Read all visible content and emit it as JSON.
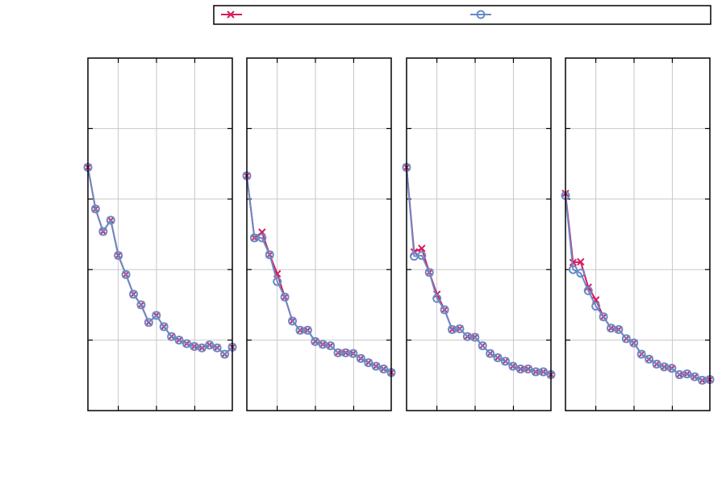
{
  "colors": {
    "series_a": "#d81b60",
    "series_b": "#6a8ac4",
    "grid": "#c8c8c8",
    "axis": "#000000",
    "background": "#ffffff"
  },
  "legend": {
    "placement": "top",
    "entries": [
      {
        "marker": "x-marker-icon",
        "color": "#d81b60",
        "label": ""
      },
      {
        "marker": "circle-marker-icon",
        "color": "#6a8ac4",
        "label": ""
      }
    ]
  },
  "chart_data": [
    {
      "type": "line",
      "grid": true,
      "xlim": [
        0,
        19
      ],
      "ylim": [
        0,
        5
      ],
      "x": [
        0,
        1,
        2,
        3,
        4,
        5,
        6,
        7,
        8,
        9,
        10,
        11,
        12,
        13,
        14,
        15,
        16,
        17,
        18,
        19
      ],
      "series": [
        {
          "marker": "x",
          "color": "#d81b60",
          "values": [
            3.45,
            2.86,
            2.54,
            2.7,
            2.2,
            1.93,
            1.65,
            1.5,
            1.25,
            1.35,
            1.19,
            1.05,
            1.0,
            0.95,
            0.91,
            0.89,
            0.93,
            0.89,
            0.8,
            0.9
          ]
        },
        {
          "marker": "o",
          "color": "#6a8ac4",
          "values": [
            3.45,
            2.86,
            2.54,
            2.7,
            2.2,
            1.93,
            1.65,
            1.5,
            1.25,
            1.35,
            1.19,
            1.05,
            1.0,
            0.95,
            0.91,
            0.89,
            0.93,
            0.89,
            0.8,
            0.9
          ]
        }
      ]
    },
    {
      "type": "line",
      "grid": true,
      "xlim": [
        0,
        19
      ],
      "ylim": [
        0,
        5
      ],
      "x": [
        0,
        1,
        2,
        3,
        4,
        5,
        6,
        7,
        8,
        9,
        10,
        11,
        12,
        13,
        14,
        15,
        16,
        17,
        18,
        19
      ],
      "series": [
        {
          "marker": "x",
          "color": "#d81b60",
          "values": [
            3.33,
            2.45,
            2.53,
            2.21,
            1.94,
            1.61,
            1.27,
            1.14,
            1.14,
            0.98,
            0.94,
            0.92,
            0.82,
            0.82,
            0.81,
            0.74,
            0.68,
            0.63,
            0.59,
            0.54
          ]
        },
        {
          "marker": "o",
          "color": "#6a8ac4",
          "values": [
            3.33,
            2.45,
            2.45,
            2.21,
            1.83,
            1.61,
            1.27,
            1.14,
            1.14,
            0.98,
            0.94,
            0.92,
            0.82,
            0.82,
            0.81,
            0.74,
            0.68,
            0.63,
            0.59,
            0.54
          ]
        }
      ]
    },
    {
      "type": "line",
      "grid": true,
      "xlim": [
        0,
        19
      ],
      "ylim": [
        0,
        5
      ],
      "x": [
        0,
        1,
        2,
        3,
        4,
        5,
        6,
        7,
        8,
        9,
        10,
        11,
        12,
        13,
        14,
        15,
        16,
        17,
        18,
        19
      ],
      "series": [
        {
          "marker": "x",
          "color": "#d81b60",
          "values": [
            3.45,
            2.25,
            2.3,
            1.96,
            1.65,
            1.43,
            1.15,
            1.16,
            1.05,
            1.04,
            0.92,
            0.81,
            0.75,
            0.7,
            0.63,
            0.59,
            0.59,
            0.55,
            0.55,
            0.51
          ]
        },
        {
          "marker": "o",
          "color": "#6a8ac4",
          "values": [
            3.45,
            2.19,
            2.2,
            1.96,
            1.59,
            1.43,
            1.15,
            1.16,
            1.05,
            1.04,
            0.92,
            0.81,
            0.75,
            0.7,
            0.63,
            0.59,
            0.59,
            0.55,
            0.55,
            0.51
          ]
        }
      ]
    },
    {
      "type": "line",
      "grid": true,
      "xlim": [
        0,
        19
      ],
      "ylim": [
        0,
        5
      ],
      "x": [
        0,
        1,
        2,
        3,
        4,
        5,
        6,
        7,
        8,
        9,
        10,
        11,
        12,
        13,
        14,
        15,
        16,
        17,
        18,
        19
      ],
      "series": [
        {
          "marker": "x",
          "color": "#d81b60",
          "values": [
            3.08,
            2.1,
            2.11,
            1.75,
            1.57,
            1.33,
            1.17,
            1.15,
            1.02,
            0.96,
            0.8,
            0.73,
            0.66,
            0.62,
            0.6,
            0.51,
            0.52,
            0.48,
            0.43,
            0.44
          ]
        },
        {
          "marker": "o",
          "color": "#6a8ac4",
          "values": [
            3.05,
            2.0,
            1.95,
            1.7,
            1.48,
            1.33,
            1.17,
            1.15,
            1.02,
            0.96,
            0.8,
            0.73,
            0.66,
            0.62,
            0.6,
            0.51,
            0.52,
            0.48,
            0.43,
            0.44
          ]
        }
      ]
    }
  ]
}
